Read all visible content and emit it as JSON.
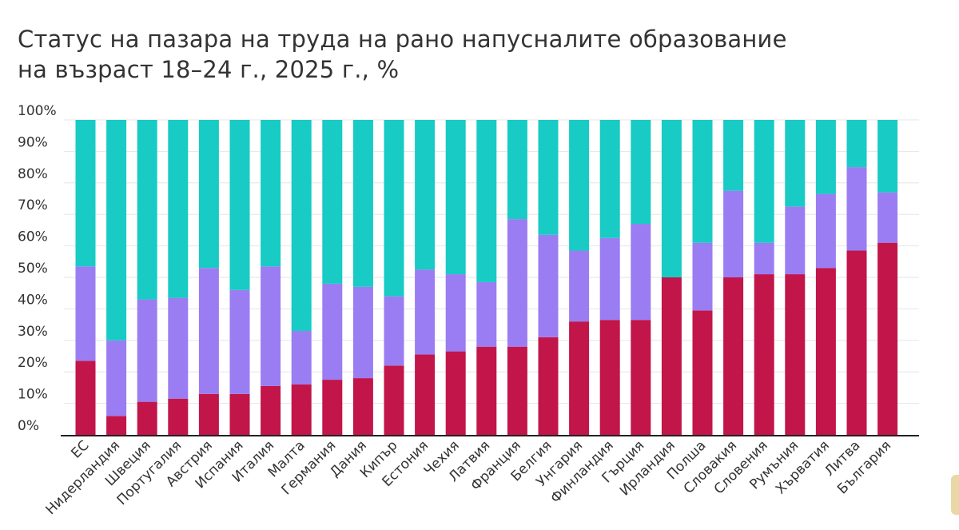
{
  "title_line1": "Статус на пазара на труда на рано напусналите образование",
  "title_line2": "на възраст 18–24 г., 2025 г., %",
  "colors": {
    "series1": "#c2154a",
    "series2": "#9a7df2",
    "series3": "#18cbc4",
    "grid": "#e6e6e6",
    "axis": "#222222"
  },
  "chart_data": {
    "type": "bar",
    "stacked": true,
    "title": "Статус на пазара на труда на рано напусналите образование на възраст 18–24 г., 2025 г., %",
    "ylim": [
      0,
      100
    ],
    "yticks": [
      "0%",
      "10%",
      "20%",
      "30%",
      "40%",
      "50%",
      "60%",
      "70%",
      "80%",
      "90%",
      "100%"
    ],
    "grid": true,
    "legend": "none",
    "categories": [
      "ЕС",
      "Нидерландия",
      "Швеция",
      "Португалия",
      "Австрия",
      "Испания",
      "Италия",
      "Малта",
      "Германия",
      "Дания",
      "Кипър",
      "Естония",
      "Чехия",
      "Латвия",
      "Франция",
      "Белгия",
      "Унгария",
      "Финландия",
      "Гърция",
      "Ирландия",
      "Полша",
      "Словакия",
      "Словения",
      "Румъния",
      "Хърватия",
      "Литва",
      "България"
    ],
    "series": [
      {
        "values": [
          23.5,
          6,
          10.5,
          11.5,
          13,
          13,
          15.5,
          16,
          17.5,
          18,
          22,
          25.5,
          26.5,
          28,
          28,
          31,
          36,
          36.5,
          36.5,
          50,
          39.5,
          50,
          51,
          51,
          53,
          58.5,
          61
        ]
      },
      {
        "values": [
          30,
          24,
          32.5,
          32,
          40,
          33,
          38,
          17,
          30.5,
          29,
          22,
          27,
          24.5,
          20.5,
          40.5,
          32.5,
          22.5,
          26,
          30.5,
          0,
          21.5,
          27.5,
          10,
          21.5,
          23.5,
          26.5,
          16
        ]
      },
      {
        "values": [
          46.5,
          70,
          57,
          56.5,
          47,
          54,
          46.5,
          67,
          52,
          53,
          56,
          47.5,
          49,
          51.5,
          31.5,
          36.5,
          41.5,
          37.5,
          33,
          50,
          39,
          22.5,
          39,
          27.5,
          23.5,
          15,
          23
        ]
      }
    ]
  }
}
